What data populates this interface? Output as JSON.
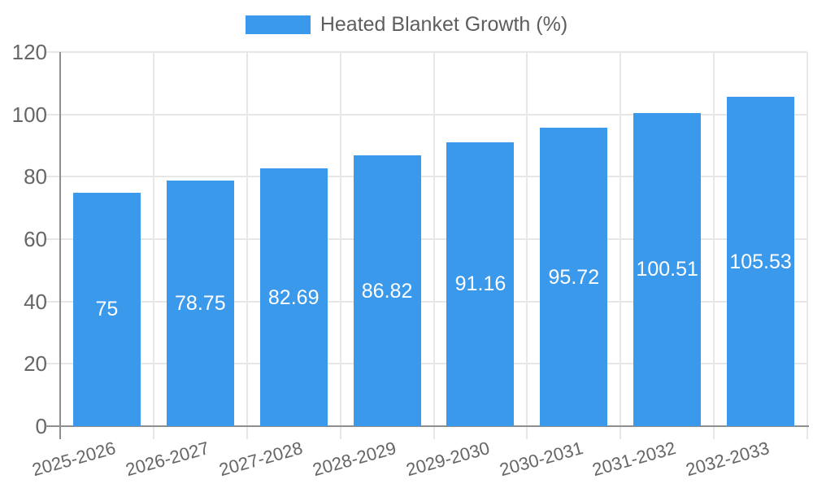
{
  "legend": {
    "label": "Heated Blanket Growth (%)"
  },
  "chart_data": {
    "type": "bar",
    "title": "Heated Blanket Growth (%)",
    "categories": [
      "2025-2026",
      "2026-2027",
      "2027-2028",
      "2028-2029",
      "2029-2030",
      "2030-2031",
      "2031-2032",
      "2032-2033"
    ],
    "values": [
      75,
      78.75,
      82.69,
      86.82,
      91.16,
      95.72,
      100.51,
      105.53
    ],
    "value_labels": [
      "75",
      "78.75",
      "82.69",
      "86.82",
      "91.16",
      "95.72",
      "100.51",
      "105.53"
    ],
    "xlabel": "",
    "ylabel": "",
    "ylim": [
      0,
      120
    ],
    "yticks": [
      0,
      20,
      40,
      60,
      80,
      100,
      120
    ],
    "grid": true,
    "legend_position": "top",
    "bar_color": "#3B99EC",
    "value_label_color": "#ffffff",
    "axis_text_color": "#666666",
    "gridline_color": "#e7e7e7",
    "axis_line_color": "#8f8f8f",
    "background_color": "#ffffff"
  }
}
